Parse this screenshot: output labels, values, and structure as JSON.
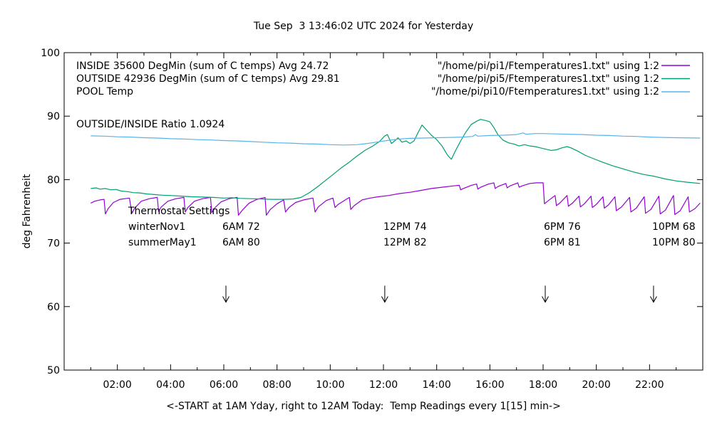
{
  "title": "Tue Sep  3 13:46:02 UTC 2024 for Yesterday",
  "legend": {
    "entries": [
      {
        "label": "INSIDE 35600 DegMin (sum of C temps) Avg 24.72",
        "file": "\"/home/pi/pi1/Ftemperatures1.txt\" using 1:2",
        "color": "#9400d3"
      },
      {
        "label": "OUTSIDE 42936 DegMin (sum of C temps) Avg 29.81",
        "file": "\"/home/pi/pi5/Ftemperatures1.txt\" using 1:2",
        "color": "#009e73"
      },
      {
        "label": "POOL Temp",
        "file": "\"/home/pi/pi10/Ftemperatures1.txt\" using 1:2",
        "color": "#56b4e9"
      }
    ]
  },
  "annotations": {
    "ratio": "OUTSIDE/INSIDE Ratio 1.0924",
    "thermostat": {
      "heading": "Thermostat Settings",
      "rows": [
        {
          "name": "winterNov1",
          "cells": [
            "6AM 72",
            "12PM 74",
            "6PM 76",
            "10PM 68"
          ]
        },
        {
          "name": "summerMay1",
          "cells": [
            "6AM 80",
            "12PM 82",
            "6PM 81",
            "10PM 80"
          ]
        }
      ]
    }
  },
  "chart_data": {
    "type": "line",
    "title": "Tue Sep  3 13:46:02 UTC 2024 for Yesterday",
    "xlabel": "<-START at 1AM Yday, right to 12AM Today:  Temp Readings every 1[15] min->",
    "ylabel": "deg Fahrenheit",
    "xlim": [
      0,
      24
    ],
    "ylim": [
      50,
      100
    ],
    "grid": false,
    "legend_position": "top-right-inside",
    "x_ticks": [
      {
        "h": 2,
        "label": "02:00"
      },
      {
        "h": 4,
        "label": "04:00"
      },
      {
        "h": 6,
        "label": "06:00"
      },
      {
        "h": 8,
        "label": "08:00"
      },
      {
        "h": 10,
        "label": "10:00"
      },
      {
        "h": 12,
        "label": "12:00"
      },
      {
        "h": 14,
        "label": "14:00"
      },
      {
        "h": 16,
        "label": "16:00"
      },
      {
        "h": 18,
        "label": "18:00"
      },
      {
        "h": 20,
        "label": "20:00"
      },
      {
        "h": 22,
        "label": "22:00"
      }
    ],
    "x_minor_step": 1,
    "y_ticks": [
      50,
      60,
      70,
      80,
      90,
      100
    ],
    "arrows": [
      {
        "h": 6.08,
        "from_f": 63.3,
        "to_f": 60.7
      },
      {
        "h": 12.05,
        "from_f": 63.3,
        "to_f": 60.7
      },
      {
        "h": 18.08,
        "from_f": 63.3,
        "to_f": 60.7
      },
      {
        "h": 22.15,
        "from_f": 63.3,
        "to_f": 60.7
      }
    ],
    "series": [
      {
        "name": "INSIDE",
        "color": "#9400d3",
        "points": [
          [
            1.0,
            76.3
          ],
          [
            1.15,
            76.6
          ],
          [
            1.35,
            76.8
          ],
          [
            1.5,
            76.9
          ],
          [
            1.55,
            74.6
          ],
          [
            1.65,
            75.4
          ],
          [
            1.85,
            76.4
          ],
          [
            2.1,
            76.9
          ],
          [
            2.45,
            77.1
          ],
          [
            2.55,
            74.7
          ],
          [
            2.65,
            75.5
          ],
          [
            2.9,
            76.6
          ],
          [
            3.2,
            77.0
          ],
          [
            3.5,
            77.2
          ],
          [
            3.55,
            75.0
          ],
          [
            3.65,
            75.7
          ],
          [
            3.9,
            76.6
          ],
          [
            4.2,
            77.0
          ],
          [
            4.5,
            77.2
          ],
          [
            4.55,
            74.9
          ],
          [
            4.65,
            75.6
          ],
          [
            4.9,
            76.6
          ],
          [
            5.2,
            77.0
          ],
          [
            5.5,
            77.2
          ],
          [
            5.55,
            74.8
          ],
          [
            5.65,
            75.5
          ],
          [
            5.9,
            76.5
          ],
          [
            6.2,
            77.0
          ],
          [
            6.5,
            77.2
          ],
          [
            6.55,
            74.4
          ],
          [
            6.7,
            75.2
          ],
          [
            6.95,
            76.3
          ],
          [
            7.25,
            76.9
          ],
          [
            7.55,
            77.2
          ],
          [
            7.6,
            74.4
          ],
          [
            7.75,
            75.3
          ],
          [
            8.0,
            76.2
          ],
          [
            8.25,
            76.8
          ],
          [
            8.32,
            74.9
          ],
          [
            8.45,
            75.6
          ],
          [
            8.7,
            76.4
          ],
          [
            9.0,
            76.8
          ],
          [
            9.35,
            77.1
          ],
          [
            9.43,
            74.9
          ],
          [
            9.55,
            75.7
          ],
          [
            9.85,
            76.7
          ],
          [
            10.1,
            77.1
          ],
          [
            10.18,
            75.6
          ],
          [
            10.3,
            76.1
          ],
          [
            10.6,
            76.9
          ],
          [
            10.72,
            77.2
          ],
          [
            10.77,
            75.3
          ],
          [
            10.9,
            75.9
          ],
          [
            11.2,
            76.8
          ],
          [
            11.5,
            77.1
          ],
          [
            11.8,
            77.3
          ],
          [
            12.2,
            77.5
          ],
          [
            12.6,
            77.8
          ],
          [
            13.0,
            78.0
          ],
          [
            13.4,
            78.3
          ],
          [
            13.8,
            78.6
          ],
          [
            14.2,
            78.8
          ],
          [
            14.6,
            79.0
          ],
          [
            14.85,
            79.1
          ],
          [
            14.9,
            78.4
          ],
          [
            15.0,
            78.6
          ],
          [
            15.3,
            79.1
          ],
          [
            15.5,
            79.3
          ],
          [
            15.55,
            78.5
          ],
          [
            15.65,
            78.8
          ],
          [
            15.95,
            79.3
          ],
          [
            16.15,
            79.5
          ],
          [
            16.2,
            78.6
          ],
          [
            16.3,
            78.9
          ],
          [
            16.6,
            79.4
          ],
          [
            16.65,
            78.7
          ],
          [
            16.75,
            79.0
          ],
          [
            17.05,
            79.5
          ],
          [
            17.1,
            78.8
          ],
          [
            17.2,
            79.0
          ],
          [
            17.5,
            79.4
          ],
          [
            17.75,
            79.5
          ],
          [
            18.0,
            79.5
          ],
          [
            18.05,
            76.2
          ],
          [
            18.2,
            76.7
          ],
          [
            18.45,
            77.5
          ],
          [
            18.5,
            75.9
          ],
          [
            18.65,
            76.4
          ],
          [
            18.9,
            77.5
          ],
          [
            18.95,
            75.8
          ],
          [
            19.1,
            76.3
          ],
          [
            19.35,
            77.4
          ],
          [
            19.4,
            75.7
          ],
          [
            19.55,
            76.2
          ],
          [
            19.8,
            77.4
          ],
          [
            19.85,
            75.6
          ],
          [
            20.0,
            76.1
          ],
          [
            20.25,
            77.3
          ],
          [
            20.3,
            75.5
          ],
          [
            20.45,
            76.0
          ],
          [
            20.7,
            77.3
          ],
          [
            20.75,
            75.1
          ],
          [
            20.95,
            75.7
          ],
          [
            21.25,
            77.2
          ],
          [
            21.3,
            74.9
          ],
          [
            21.5,
            75.5
          ],
          [
            21.8,
            77.3
          ],
          [
            21.85,
            74.7
          ],
          [
            22.05,
            75.3
          ],
          [
            22.35,
            77.4
          ],
          [
            22.4,
            74.6
          ],
          [
            22.6,
            75.2
          ],
          [
            22.9,
            77.5
          ],
          [
            22.95,
            74.5
          ],
          [
            23.15,
            75.1
          ],
          [
            23.45,
            77.3
          ],
          [
            23.5,
            74.9
          ],
          [
            23.7,
            75.4
          ],
          [
            23.9,
            76.3
          ]
        ]
      },
      {
        "name": "OUTSIDE",
        "color": "#009e73",
        "points": [
          [
            1.0,
            78.6
          ],
          [
            1.2,
            78.7
          ],
          [
            1.35,
            78.5
          ],
          [
            1.55,
            78.6
          ],
          [
            1.75,
            78.4
          ],
          [
            1.95,
            78.45
          ],
          [
            2.15,
            78.2
          ],
          [
            2.4,
            78.1
          ],
          [
            2.6,
            77.95
          ],
          [
            2.85,
            77.9
          ],
          [
            3.1,
            77.75
          ],
          [
            3.4,
            77.65
          ],
          [
            3.7,
            77.55
          ],
          [
            4.0,
            77.5
          ],
          [
            4.4,
            77.4
          ],
          [
            4.8,
            77.3
          ],
          [
            5.2,
            77.25
          ],
          [
            5.6,
            77.2
          ],
          [
            6.0,
            77.1
          ],
          [
            6.3,
            77.15
          ],
          [
            6.6,
            77.05
          ],
          [
            7.0,
            77.0
          ],
          [
            7.4,
            76.95
          ],
          [
            7.8,
            76.9
          ],
          [
            8.2,
            76.9
          ],
          [
            8.6,
            76.95
          ],
          [
            8.9,
            77.2
          ],
          [
            9.2,
            77.9
          ],
          [
            9.5,
            78.8
          ],
          [
            9.8,
            79.8
          ],
          [
            10.1,
            80.8
          ],
          [
            10.4,
            81.8
          ],
          [
            10.7,
            82.7
          ],
          [
            11.0,
            83.7
          ],
          [
            11.3,
            84.6
          ],
          [
            11.6,
            85.3
          ],
          [
            11.85,
            86.0
          ],
          [
            12.05,
            86.9
          ],
          [
            12.15,
            87.1
          ],
          [
            12.3,
            85.7
          ],
          [
            12.45,
            86.2
          ],
          [
            12.55,
            86.6
          ],
          [
            12.7,
            85.9
          ],
          [
            12.85,
            86.1
          ],
          [
            13.0,
            85.7
          ],
          [
            13.15,
            86.1
          ],
          [
            13.3,
            87.4
          ],
          [
            13.45,
            88.6
          ],
          [
            13.6,
            87.9
          ],
          [
            13.8,
            87.0
          ],
          [
            14.0,
            86.3
          ],
          [
            14.2,
            85.3
          ],
          [
            14.4,
            83.9
          ],
          [
            14.55,
            83.2
          ],
          [
            14.7,
            84.5
          ],
          [
            14.9,
            86.1
          ],
          [
            15.1,
            87.5
          ],
          [
            15.3,
            88.7
          ],
          [
            15.5,
            89.2
          ],
          [
            15.65,
            89.5
          ],
          [
            15.85,
            89.3
          ],
          [
            16.0,
            89.1
          ],
          [
            16.15,
            88.2
          ],
          [
            16.3,
            87.1
          ],
          [
            16.5,
            86.2
          ],
          [
            16.7,
            85.8
          ],
          [
            16.9,
            85.6
          ],
          [
            17.1,
            85.3
          ],
          [
            17.3,
            85.5
          ],
          [
            17.5,
            85.3
          ],
          [
            17.7,
            85.2
          ],
          [
            17.9,
            85.0
          ],
          [
            18.1,
            84.8
          ],
          [
            18.3,
            84.6
          ],
          [
            18.5,
            84.7
          ],
          [
            18.7,
            85.0
          ],
          [
            18.9,
            85.2
          ],
          [
            19.05,
            85.0
          ],
          [
            19.3,
            84.5
          ],
          [
            19.6,
            83.8
          ],
          [
            19.9,
            83.3
          ],
          [
            20.2,
            82.8
          ],
          [
            20.6,
            82.2
          ],
          [
            21.0,
            81.7
          ],
          [
            21.4,
            81.2
          ],
          [
            21.8,
            80.8
          ],
          [
            22.2,
            80.5
          ],
          [
            22.6,
            80.1
          ],
          [
            23.0,
            79.8
          ],
          [
            23.4,
            79.6
          ],
          [
            23.9,
            79.4
          ]
        ]
      },
      {
        "name": "POOL",
        "color": "#56b4e9",
        "points": [
          [
            1.0,
            86.9
          ],
          [
            1.5,
            86.85
          ],
          [
            2.0,
            86.75
          ],
          [
            2.5,
            86.7
          ],
          [
            3.0,
            86.6
          ],
          [
            3.5,
            86.55
          ],
          [
            4.0,
            86.45
          ],
          [
            4.5,
            86.4
          ],
          [
            5.0,
            86.3
          ],
          [
            5.5,
            86.25
          ],
          [
            6.0,
            86.15
          ],
          [
            6.5,
            86.1
          ],
          [
            7.0,
            86.0
          ],
          [
            7.5,
            85.9
          ],
          [
            8.0,
            85.8
          ],
          [
            8.5,
            85.75
          ],
          [
            9.0,
            85.65
          ],
          [
            9.5,
            85.6
          ],
          [
            10.0,
            85.5
          ],
          [
            10.5,
            85.45
          ],
          [
            11.0,
            85.5
          ],
          [
            11.4,
            85.7
          ],
          [
            11.8,
            85.95
          ],
          [
            12.2,
            86.2
          ],
          [
            12.6,
            86.4
          ],
          [
            13.0,
            86.5
          ],
          [
            13.5,
            86.55
          ],
          [
            14.0,
            86.6
          ],
          [
            14.5,
            86.65
          ],
          [
            15.0,
            86.7
          ],
          [
            15.35,
            86.8
          ],
          [
            15.45,
            87.1
          ],
          [
            15.55,
            86.85
          ],
          [
            16.0,
            86.95
          ],
          [
            16.5,
            87.0
          ],
          [
            17.0,
            87.1
          ],
          [
            17.25,
            87.35
          ],
          [
            17.35,
            87.15
          ],
          [
            17.7,
            87.25
          ],
          [
            18.0,
            87.25
          ],
          [
            18.5,
            87.2
          ],
          [
            19.0,
            87.15
          ],
          [
            19.5,
            87.1
          ],
          [
            20.0,
            87.0
          ],
          [
            20.5,
            86.95
          ],
          [
            21.0,
            86.85
          ],
          [
            21.5,
            86.8
          ],
          [
            22.0,
            86.7
          ],
          [
            22.5,
            86.65
          ],
          [
            23.0,
            86.6
          ],
          [
            23.9,
            86.55
          ]
        ]
      }
    ]
  }
}
